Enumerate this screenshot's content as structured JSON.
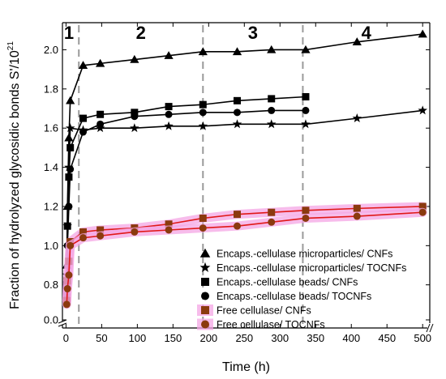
{
  "chart_data": {
    "type": "line",
    "xlabel": "Time (h)",
    "ylabel_main": "Fraction of hydrolyzed glycosidic bonds S'/10",
    "ylabel_sup": "21",
    "x_ticks": [
      0,
      50,
      100,
      150,
      200,
      250,
      300,
      350,
      400,
      450,
      500
    ],
    "y_ticks": [
      0.0,
      0.8,
      1.0,
      1.2,
      1.4,
      1.6,
      1.8,
      2.0
    ],
    "y_tick_labels": [
      "0.0",
      "0.8",
      "1.0",
      "1.2",
      "1.4",
      "1.6",
      "1.8",
      "2.0"
    ],
    "xlim": [
      -5,
      510
    ],
    "ylim": [
      0.65,
      2.13
    ],
    "y_axis_break": true,
    "x_axis_break": true,
    "region_boundaries_h": [
      18,
      192,
      332
    ],
    "regions": [
      "1",
      "2",
      "3",
      "4"
    ],
    "grid": false,
    "legend_position": "bottom-right",
    "series": [
      {
        "name": "Encaps.-cellulase microparticles/ CNFs",
        "marker": "triangle",
        "color": "#000000",
        "line_color": "#000000",
        "highlight": "",
        "x": [
          1,
          2,
          4,
          6,
          24,
          48,
          96,
          144,
          192,
          240,
          288,
          336,
          408,
          500
        ],
        "y": [
          0.9,
          1.2,
          1.55,
          1.74,
          1.92,
          1.93,
          1.95,
          1.97,
          1.99,
          1.99,
          2.0,
          2.0,
          2.04,
          2.08
        ]
      },
      {
        "name": "Encaps.-cellulase microparticles/ TOCNFs",
        "marker": "star",
        "color": "#000000",
        "line_color": "#000000",
        "highlight": "",
        "x": [
          1,
          2,
          4,
          6,
          24,
          48,
          96,
          144,
          192,
          240,
          288,
          336,
          408,
          500
        ],
        "y": [
          0.85,
          1.1,
          1.4,
          1.6,
          1.59,
          1.6,
          1.6,
          1.61,
          1.61,
          1.62,
          1.62,
          1.62,
          1.65,
          1.69
        ]
      },
      {
        "name": "Encaps.-cellulase beads/ CNFs",
        "marker": "square",
        "color": "#000000",
        "line_color": "#000000",
        "highlight": "",
        "x": [
          1,
          2,
          4,
          6,
          24,
          48,
          96,
          144,
          192,
          240,
          288,
          336
        ],
        "y": [
          0.8,
          1.1,
          1.35,
          1.5,
          1.65,
          1.67,
          1.68,
          1.71,
          1.72,
          1.74,
          1.75,
          1.76
        ]
      },
      {
        "name": "Encaps.-cellulase beads/ TOCNFs",
        "marker": "circle",
        "color": "#000000",
        "line_color": "#000000",
        "highlight": "",
        "x": [
          1,
          2,
          4,
          6,
          24,
          48,
          96,
          144,
          192,
          240,
          288,
          336
        ],
        "y": [
          0.75,
          1.0,
          1.2,
          1.39,
          1.58,
          1.62,
          1.66,
          1.67,
          1.68,
          1.68,
          1.69,
          1.69
        ]
      },
      {
        "name": "Free cellulase/ CNFs",
        "marker": "square",
        "color": "#8b3a0e",
        "line_color": "#e01818",
        "highlight": "#f4a6e4",
        "x": [
          1,
          2,
          4,
          6,
          24,
          48,
          96,
          144,
          192,
          240,
          288,
          336,
          408,
          500
        ],
        "y": [
          0.72,
          0.82,
          0.92,
          1.02,
          1.07,
          1.08,
          1.09,
          1.11,
          1.14,
          1.16,
          1.17,
          1.18,
          1.19,
          1.2
        ]
      },
      {
        "name": "Free cellulase/ TOCNFs",
        "marker": "circle",
        "color": "#8b3a0e",
        "line_color": "#e01818",
        "highlight": "#f4a6e4",
        "x": [
          1,
          2,
          4,
          6,
          24,
          48,
          96,
          144,
          192,
          240,
          288,
          336,
          408,
          500
        ],
        "y": [
          0.7,
          0.78,
          0.85,
          1.0,
          1.04,
          1.05,
          1.07,
          1.08,
          1.09,
          1.1,
          1.12,
          1.14,
          1.15,
          1.17
        ]
      }
    ]
  }
}
